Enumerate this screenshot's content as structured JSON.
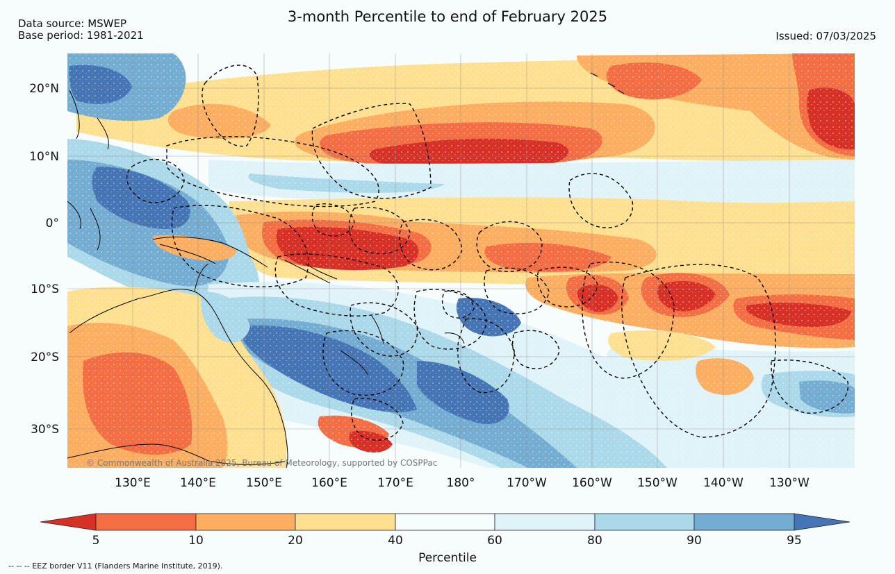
{
  "header": {
    "title": "3-month Percentile to end of February 2025",
    "data_source": "Data source: MSWEP",
    "base_period": "Base period: 1981-2021",
    "issued": "Issued: 07/03/2025"
  },
  "map": {
    "lon_range": [
      120,
      240
    ],
    "lat_range": [
      -35,
      25
    ],
    "lat_labels": [
      {
        "lat": 20,
        "label": "20°N"
      },
      {
        "lat": 10,
        "label": "10°N"
      },
      {
        "lat": 0,
        "label": "0°"
      },
      {
        "lat": -10,
        "label": "10°S"
      },
      {
        "lat": -20,
        "label": "20°S"
      },
      {
        "lat": -30,
        "label": "30°S"
      }
    ],
    "lon_labels": [
      {
        "lon": 130,
        "label": "130°E"
      },
      {
        "lon": 140,
        "label": "140°E"
      },
      {
        "lon": 150,
        "label": "150°E"
      },
      {
        "lon": 160,
        "label": "160°E"
      },
      {
        "lon": 170,
        "label": "170°E"
      },
      {
        "lon": 180,
        "label": "180°"
      },
      {
        "lon": 190,
        "label": "170°W"
      },
      {
        "lon": 200,
        "label": "160°W"
      },
      {
        "lon": 210,
        "label": "150°W"
      },
      {
        "lon": 220,
        "label": "140°W"
      },
      {
        "lon": 230,
        "label": "130°W"
      }
    ],
    "copyright": "© Commonwealth of Australia 2025, Bureau of Meteorology, supported by COSPPac",
    "background_color": "#f7fcfc"
  },
  "colorbar": {
    "title": "Percentile",
    "ticks": [
      "5",
      "10",
      "20",
      "40",
      "60",
      "80",
      "90",
      "95"
    ],
    "colors": [
      "#d73027",
      "#f46d43",
      "#fdae61",
      "#fee090",
      "#f7fcfc",
      "#e0f3f8",
      "#abd9e9",
      "#74add1",
      "#4575b4"
    ]
  },
  "footnote": "--  --  -- EEZ border V11 (Flanders Marine Institute, 2019)."
}
